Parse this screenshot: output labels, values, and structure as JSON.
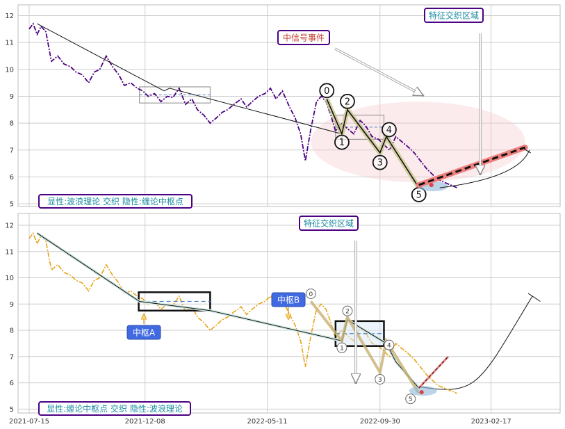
{
  "colors": {
    "top_price": "#4b0082",
    "bottom_price": "#e8a317",
    "label_border": "#4b0082",
    "label_text_teal": "#1a8aa0",
    "label_text_red": "#c0392b",
    "zhongshu_label_bg": "#4169e1",
    "zone_pink": "#f5c6cb",
    "forecast_red": "#f08080",
    "trend_olive": "#6b6b2a"
  },
  "x_axis": {
    "tick_labels": [
      "2021-07-15",
      "2021-12-08",
      "2022-05-11",
      "2022-09-30",
      "2023-02-17"
    ],
    "range": [
      "2021-07-01",
      "2023-05-15"
    ]
  },
  "chart_data": [
    {
      "type": "line",
      "panel": "top",
      "ylim": [
        4.9,
        12.4
      ],
      "yticks": [
        5,
        6,
        7,
        8,
        9,
        10,
        11,
        12
      ],
      "grid": true,
      "legend_box": {
        "text": "显性:波浪理论 交织 隐性:缠论中枢点",
        "placement": "bottom-left"
      },
      "annotations": [
        {
          "text": "中信号事件",
          "color": "red"
        },
        {
          "text": "特征交织区域",
          "color": "teal"
        }
      ],
      "wave_labels": [
        "0",
        "1",
        "2",
        "3",
        "4",
        "5"
      ],
      "price_series": {
        "x": [
          "2021-07-15",
          "2021-07-20",
          "2021-07-25",
          "2021-07-30",
          "2021-08-05",
          "2021-08-12",
          "2021-08-20",
          "2021-08-28",
          "2021-09-05",
          "2021-09-12",
          "2021-09-20",
          "2021-09-28",
          "2021-10-05",
          "2021-10-12",
          "2021-10-20",
          "2021-10-28",
          "2021-11-05",
          "2021-11-12",
          "2021-11-20",
          "2021-11-28",
          "2021-12-05",
          "2021-12-12",
          "2021-12-20",
          "2021-12-28",
          "2022-01-05",
          "2022-01-12",
          "2022-01-20",
          "2022-01-28",
          "2022-02-05",
          "2022-02-12",
          "2022-02-20",
          "2022-02-28",
          "2022-03-08",
          "2022-03-15",
          "2022-03-22",
          "2022-03-30",
          "2022-04-08",
          "2022-04-15",
          "2022-04-22",
          "2022-04-30",
          "2022-05-08",
          "2022-05-15",
          "2022-05-22",
          "2022-05-30",
          "2022-06-08",
          "2022-06-15",
          "2022-06-22",
          "2022-06-28",
          "2022-07-05",
          "2022-07-12",
          "2022-07-18",
          "2022-07-24",
          "2022-07-30",
          "2022-08-05",
          "2022-08-12",
          "2022-08-20",
          "2022-08-28",
          "2022-09-05",
          "2022-09-12",
          "2022-09-20",
          "2022-09-28",
          "2022-10-05",
          "2022-10-12",
          "2022-10-20",
          "2022-10-28",
          "2022-11-05",
          "2022-11-12",
          "2022-11-20",
          "2022-11-28",
          "2022-12-05",
          "2022-12-12",
          "2022-12-20",
          "2022-12-28",
          "2023-01-05"
        ],
        "y": [
          11.5,
          11.7,
          11.3,
          11.6,
          11.4,
          10.3,
          10.5,
          10.2,
          10.1,
          9.9,
          9.8,
          9.5,
          9.9,
          10.0,
          10.5,
          10.1,
          9.8,
          9.4,
          9.5,
          9.3,
          9.2,
          9.0,
          9.1,
          8.8,
          9.0,
          8.95,
          9.3,
          8.7,
          8.9,
          8.5,
          8.3,
          8.0,
          8.2,
          8.4,
          8.5,
          8.7,
          8.9,
          8.6,
          8.8,
          9.0,
          9.1,
          9.3,
          8.9,
          9.2,
          8.6,
          8.2,
          7.6,
          6.6,
          7.8,
          8.8,
          9.0,
          8.8,
          8.3,
          7.7,
          8.0,
          7.8,
          7.6,
          8.1,
          7.9,
          7.5,
          7.4,
          7.2,
          7.0,
          7.5,
          7.3,
          7.1,
          6.9,
          6.6,
          6.3,
          6.1,
          5.9,
          5.8,
          5.7,
          5.6
        ]
      },
      "trend_line": {
        "x": [
          "2021-07-25",
          "2022-01-01",
          "2022-01-08",
          "2022-08-13"
        ],
        "y": [
          11.7,
          9.2,
          9.3,
          7.6
        ]
      },
      "wave_path": {
        "x": [
          "2022-07-25",
          "2022-08-13",
          "2022-08-20",
          "2022-09-30",
          "2022-10-08",
          "2022-11-18"
        ],
        "y": [
          8.9,
          7.6,
          8.5,
          6.9,
          7.5,
          5.6
        ]
      },
      "zhongshu_boxes": [
        {
          "x": [
            "2021-12-01",
            "2022-02-28"
          ],
          "y": [
            8.75,
            9.35
          ]
        },
        {
          "x": [
            "2022-08-05",
            "2022-10-05"
          ],
          "y": [
            7.4,
            8.3
          ]
        }
      ],
      "feature_zone": {
        "x": [
          "2022-07-05",
          "2023-04-01"
        ],
        "y": [
          5.8,
          8.8
        ]
      },
      "forecast": {
        "x": [
          "2022-11-18",
          "2023-04-01"
        ],
        "y": [
          5.7,
          7.1
        ]
      }
    },
    {
      "type": "line",
      "panel": "bottom",
      "ylim": [
        4.85,
        12.45
      ],
      "yticks": [
        5,
        6,
        7,
        8,
        9,
        10,
        11,
        12
      ],
      "grid": true,
      "legend_box": {
        "text": "显性:缠论中枢点 交织 隐性:波浪理论",
        "placement": "bottom-left"
      },
      "annotations": [
        {
          "text": "特征交织区域",
          "color": "teal"
        },
        {
          "text": "中枢A",
          "color": "white-on-blue"
        },
        {
          "text": "中枢B",
          "color": "white-on-blue"
        }
      ],
      "wave_labels": [
        "0",
        "1",
        "2",
        "3",
        "4",
        "5"
      ],
      "price_series": {
        "x": [
          "2021-07-15",
          "2021-07-20",
          "2021-07-25",
          "2021-07-30",
          "2021-08-05",
          "2021-08-12",
          "2021-08-20",
          "2021-08-28",
          "2021-09-05",
          "2021-09-12",
          "2021-09-20",
          "2021-09-28",
          "2021-10-05",
          "2021-10-12",
          "2021-10-20",
          "2021-10-28",
          "2021-11-05",
          "2021-11-12",
          "2021-11-20",
          "2021-11-28",
          "2021-12-05",
          "2021-12-12",
          "2021-12-20",
          "2021-12-28",
          "2022-01-05",
          "2022-01-12",
          "2022-01-20",
          "2022-01-28",
          "2022-02-05",
          "2022-02-12",
          "2022-02-20",
          "2022-02-28",
          "2022-03-08",
          "2022-03-15",
          "2022-03-22",
          "2022-03-30",
          "2022-04-08",
          "2022-04-15",
          "2022-04-22",
          "2022-04-30",
          "2022-05-08",
          "2022-05-15",
          "2022-05-22",
          "2022-05-30",
          "2022-06-08",
          "2022-06-15",
          "2022-06-22",
          "2022-06-28",
          "2022-07-05",
          "2022-07-12",
          "2022-07-18",
          "2022-07-24",
          "2022-07-30",
          "2022-08-05",
          "2022-08-12",
          "2022-08-20",
          "2022-08-28",
          "2022-09-05",
          "2022-09-12",
          "2022-09-20",
          "2022-09-28",
          "2022-10-05",
          "2022-10-12",
          "2022-10-20",
          "2022-10-28",
          "2022-11-05",
          "2022-11-12",
          "2022-11-20",
          "2022-11-28",
          "2022-12-05",
          "2022-12-12",
          "2022-12-20",
          "2022-12-28",
          "2023-01-05"
        ],
        "y": [
          11.5,
          11.7,
          11.3,
          11.6,
          11.4,
          10.3,
          10.5,
          10.2,
          10.1,
          9.9,
          9.8,
          9.5,
          9.9,
          10.0,
          10.5,
          10.1,
          9.8,
          9.4,
          9.5,
          9.3,
          9.2,
          9.0,
          9.1,
          8.8,
          9.0,
          8.95,
          9.3,
          8.7,
          8.9,
          8.5,
          8.3,
          8.0,
          8.2,
          8.4,
          8.5,
          8.7,
          8.9,
          8.6,
          8.8,
          9.0,
          9.1,
          9.3,
          8.9,
          9.2,
          8.6,
          8.2,
          7.6,
          6.6,
          7.8,
          8.8,
          9.0,
          8.8,
          8.3,
          7.7,
          8.0,
          7.8,
          7.6,
          8.1,
          7.9,
          7.5,
          7.4,
          7.2,
          7.0,
          7.5,
          7.3,
          7.1,
          6.9,
          6.6,
          6.3,
          6.1,
          5.9,
          5.8,
          5.7,
          5.6
        ]
      },
      "trend_line": {
        "x": [
          "2021-07-25",
          "2021-12-01",
          "2022-02-28",
          "2022-08-13",
          "2022-08-20",
          "2022-10-08",
          "2022-10-20",
          "2022-11-18"
        ],
        "y": [
          11.7,
          9.1,
          8.75,
          7.6,
          8.4,
          7.5,
          6.8,
          5.8
        ]
      },
      "wave_path": {
        "x": [
          "2022-07-05",
          "2022-08-13",
          "2022-08-20",
          "2022-09-30",
          "2022-10-08",
          "2022-11-18"
        ],
        "y": [
          9.1,
          7.6,
          8.5,
          6.4,
          7.6,
          5.6
        ]
      },
      "zhongshu_boxes": [
        {
          "label": "中枢A",
          "x": [
            "2021-11-30",
            "2022-02-28"
          ],
          "y": [
            8.75,
            9.45
          ]
        },
        {
          "label": "中枢B",
          "x": [
            "2022-08-05",
            "2022-10-05"
          ],
          "y": [
            7.4,
            8.35
          ]
        }
      ],
      "forecast": {
        "x": [
          "2022-11-18",
          "2022-12-25"
        ],
        "y": [
          5.8,
          7.0
        ]
      },
      "projection_arc": {
        "x": [
          "2022-11-18",
          "2023-02-01",
          "2023-04-10",
          "2023-04-20"
        ],
        "y": [
          5.85,
          5.9,
          9.3,
          9.1
        ]
      }
    }
  ]
}
